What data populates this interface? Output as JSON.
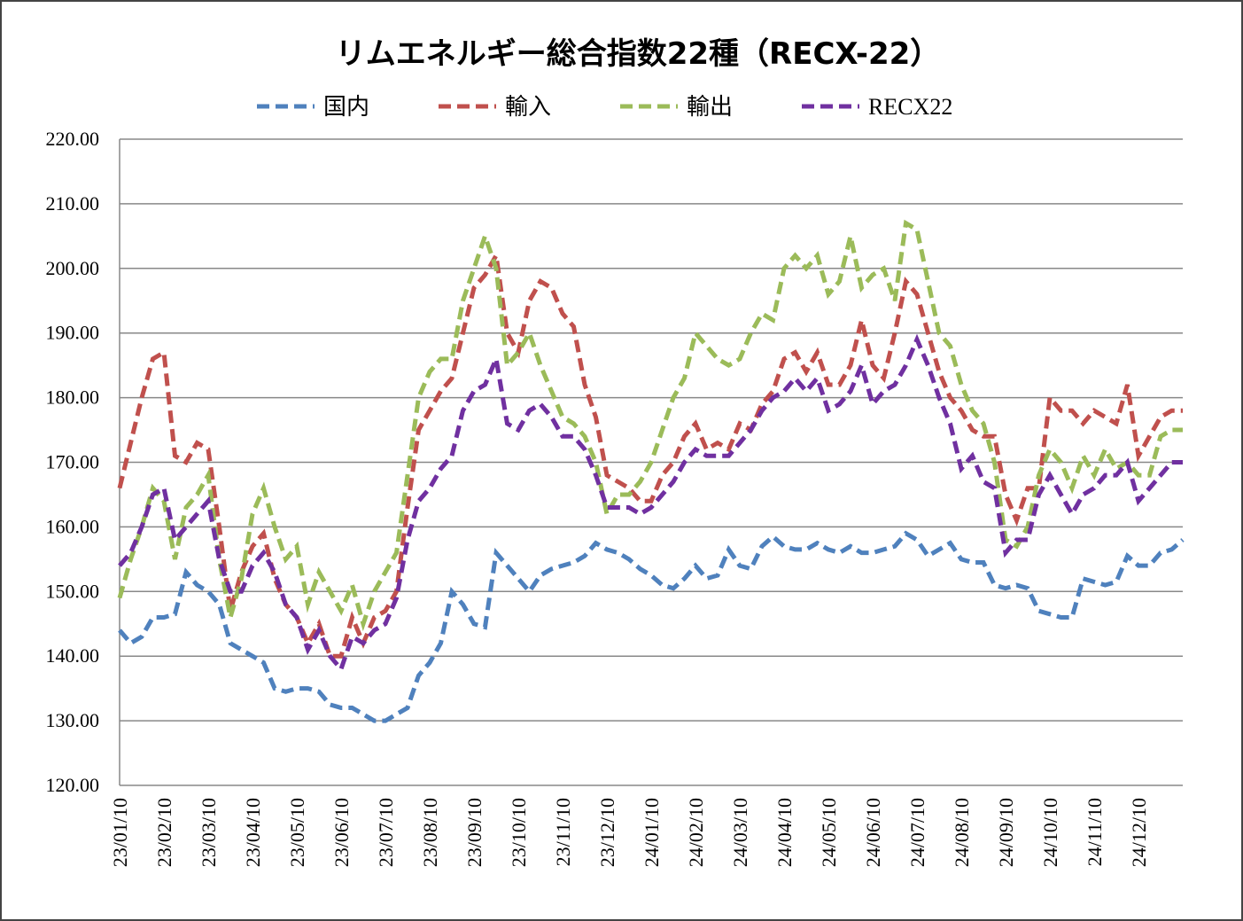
{
  "chart_data": {
    "type": "line",
    "title": "リムエネルギー総合指数22種（RECX-22）",
    "categories": [
      "23/01/10",
      null,
      null,
      null,
      "23/02/10",
      null,
      null,
      null,
      "23/03/10",
      null,
      null,
      null,
      "23/04/10",
      null,
      null,
      null,
      "23/05/10",
      null,
      null,
      null,
      "23/06/10",
      null,
      null,
      null,
      "23/07/10",
      null,
      null,
      null,
      "23/08/10",
      null,
      null,
      null,
      "23/09/10",
      null,
      null,
      null,
      "23/10/10",
      null,
      null,
      null,
      "23/11/10",
      null,
      null,
      null,
      "23/12/10",
      null,
      null,
      null,
      "24/01/10",
      null,
      null,
      null,
      "24/02/10",
      null,
      null,
      null,
      "24/03/10",
      null,
      null,
      null,
      "24/04/10",
      null,
      null,
      null,
      "24/05/10",
      null,
      null,
      null,
      "24/06/10",
      null,
      null,
      null,
      "24/07/10",
      null,
      null,
      null,
      "24/08/10",
      null,
      null,
      null,
      "24/09/10",
      null,
      null,
      null,
      "24/10/10",
      null,
      null,
      null,
      "24/11/10",
      null,
      null,
      null,
      "24/12/10",
      null,
      null,
      null,
      null
    ],
    "series": [
      {
        "name": "国内",
        "color": "#4f81bd",
        "values": [
          144,
          142,
          143,
          146,
          146,
          146.5,
          153,
          151,
          150,
          148,
          142,
          141,
          140,
          139,
          135,
          134.5,
          135,
          135,
          134.5,
          132.5,
          132,
          132,
          131,
          130,
          130,
          131,
          132,
          137,
          139,
          142,
          150,
          148,
          145,
          144.5,
          156,
          154,
          152,
          150,
          152.5,
          153.5,
          154,
          154.5,
          155.5,
          157.5,
          156.5,
          156,
          155,
          153.5,
          152.5,
          151,
          150.5,
          152,
          154,
          152,
          152.5,
          156.5,
          154,
          153.5,
          157,
          158.5,
          157,
          156.5,
          156.5,
          157.5,
          156.5,
          156,
          157,
          156,
          156,
          156.5,
          157,
          159,
          158,
          155.5,
          156.5,
          157.5,
          155,
          154.5,
          154.5,
          151,
          150.5,
          151,
          150.5,
          147,
          146.5,
          146,
          146,
          152,
          151.5,
          151,
          151.5,
          155.5,
          154,
          154,
          156,
          156.5,
          158
        ]
      },
      {
        "name": "輸入",
        "color": "#c0504d",
        "values": [
          166,
          173,
          180,
          186,
          187,
          171,
          170,
          173,
          172,
          160,
          147,
          153,
          157,
          159,
          152,
          148,
          146,
          142,
          145,
          140,
          140,
          146,
          142,
          146,
          147,
          150,
          163,
          175,
          178,
          181,
          183,
          190,
          197,
          199,
          202,
          190,
          187,
          195,
          198,
          197,
          193,
          191,
          182,
          177,
          168,
          167,
          166,
          164,
          164,
          168,
          170,
          174,
          176,
          172,
          173,
          172,
          176,
          175,
          179,
          181,
          186,
          187,
          184,
          187,
          182,
          182,
          185,
          192,
          185,
          183,
          190,
          198,
          196,
          190,
          184,
          180,
          178,
          175,
          174,
          174,
          165,
          161,
          166,
          166,
          180,
          178,
          178,
          176,
          178,
          177,
          176,
          182,
          171,
          174,
          177,
          178,
          178
        ]
      },
      {
        "name": "輸出",
        "color": "#9bbb59",
        "values": [
          149,
          155,
          160,
          166,
          164,
          155,
          163,
          165,
          168,
          155,
          146,
          152,
          162,
          166,
          160,
          155,
          157,
          148,
          153,
          150,
          147,
          151,
          145,
          150,
          153,
          156,
          168,
          180,
          184,
          186,
          186,
          195,
          200,
          205,
          200,
          185,
          187,
          190,
          185,
          181,
          177,
          176,
          174,
          170,
          162,
          165,
          165,
          167,
          170,
          175,
          180,
          183,
          190,
          188,
          186,
          185,
          186,
          190,
          193,
          192,
          200,
          202,
          200,
          202,
          196,
          198,
          205,
          197,
          199,
          200,
          195,
          207,
          206,
          198,
          190,
          188,
          182,
          178,
          176,
          170,
          158,
          157,
          160,
          168,
          172,
          170,
          166,
          171,
          168,
          172,
          169,
          170,
          168,
          168,
          174,
          175,
          175
        ]
      },
      {
        "name": "RECX22",
        "color": "#7030a0",
        "values": [
          154,
          156,
          160,
          165,
          166,
          158,
          160,
          162,
          164,
          155,
          150,
          150,
          154,
          156,
          153,
          148,
          146,
          141,
          144,
          140,
          138,
          143,
          142,
          144,
          145,
          149,
          158,
          164,
          166,
          169,
          171,
          178,
          181,
          182,
          186,
          176,
          175,
          178,
          179,
          177,
          174,
          174,
          172,
          168,
          163,
          163,
          163,
          162,
          163,
          165,
          167,
          170,
          172,
          171,
          171,
          171,
          173,
          175,
          178,
          180,
          181,
          183,
          181,
          183,
          178,
          179,
          181,
          185,
          179,
          181,
          182,
          185,
          189,
          185,
          180,
          176,
          169,
          171,
          167,
          166,
          156,
          158,
          158,
          165,
          168,
          165,
          162,
          165,
          166,
          168,
          168,
          170,
          164,
          166,
          168,
          170,
          170
        ]
      }
    ],
    "ylim": [
      120,
      220
    ],
    "yticks": [
      {
        "value": 120,
        "label": "120.00"
      },
      {
        "value": 130,
        "label": "130.00"
      },
      {
        "value": 140,
        "label": "140.00"
      },
      {
        "value": 150,
        "label": "150.00"
      },
      {
        "value": 160,
        "label": "160.00"
      },
      {
        "value": 170,
        "label": "170.00"
      },
      {
        "value": 180,
        "label": "180.00"
      },
      {
        "value": 190,
        "label": "190.00"
      },
      {
        "value": 200,
        "label": "200.00"
      },
      {
        "value": 210,
        "label": "210.00"
      },
      {
        "value": 220,
        "label": "220.00"
      }
    ],
    "grid": true
  }
}
